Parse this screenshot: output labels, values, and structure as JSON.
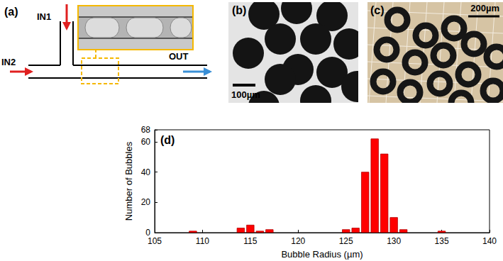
{
  "panels": {
    "a": {
      "label": "(a)",
      "inlets": [
        "IN1",
        "IN2"
      ],
      "outlet": "OUT"
    },
    "b": {
      "label": "(b)",
      "scale_bar": "100µm"
    },
    "c": {
      "label": "(c)",
      "scale_bar": "200µm"
    }
  },
  "chart_data": {
    "type": "histogram",
    "title": "(d)",
    "x_label": "Bubble Radius (µm)",
    "y_label": "Number of Bubbles",
    "bins": [
      108.5,
      109.5,
      110.5,
      111.5,
      112.5,
      113.5,
      114.5,
      115.5,
      116.5,
      117.5,
      118.5,
      119.5,
      120.5,
      121.5,
      122.5,
      123.5,
      124.5,
      125.5,
      126.5,
      127.5,
      128.5,
      129.5,
      130.5,
      131.5,
      132.5,
      133.5,
      134.5,
      135.5
    ],
    "counts": [
      1,
      0,
      0,
      0,
      0,
      3,
      5,
      1,
      2,
      0,
      0,
      0,
      0,
      0,
      0,
      0,
      2,
      3,
      40,
      62,
      52,
      10,
      2,
      0,
      0,
      0,
      1
    ],
    "color": "#ff0000",
    "xlim": [
      105,
      140
    ],
    "xticks": [
      105,
      110,
      115,
      120,
      125,
      130,
      135,
      140
    ],
    "ylim": [
      0,
      68
    ],
    "yticks": [
      0,
      20,
      40,
      60
    ],
    "grid": false
  }
}
